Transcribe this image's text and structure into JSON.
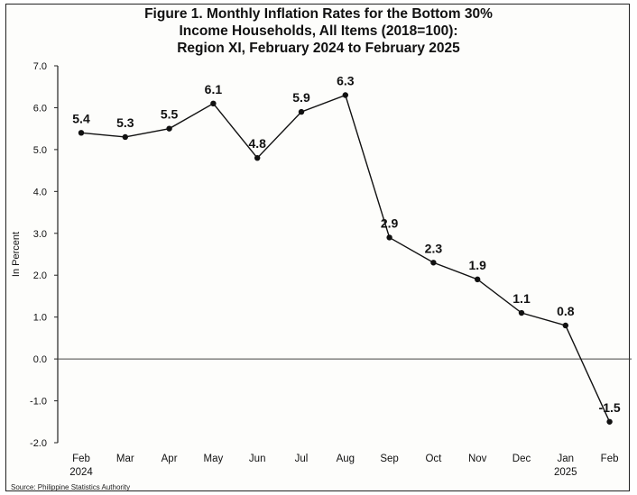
{
  "chart_data": {
    "type": "line",
    "title_lines": [
      "Figure 1. Monthly Inflation Rates for the Bottom 30%",
      "Income Households, All Items (2018=100):",
      "Region XI, February 2024 to February 2025"
    ],
    "ylabel": "In Percent",
    "ylim": [
      -2.0,
      7.0
    ],
    "yticks": [
      "7.0",
      "6.0",
      "5.0",
      "4.0",
      "3.0",
      "2.0",
      "1.0",
      "0.0",
      "-1.0",
      "-2.0"
    ],
    "ytick_values": [
      7,
      6,
      5,
      4,
      3,
      2,
      1,
      0,
      -1,
      -2
    ],
    "categories": [
      "Feb",
      "Mar",
      "Apr",
      "May",
      "Jun",
      "Jul",
      "Aug",
      "Sep",
      "Oct",
      "Nov",
      "Dec",
      "Jan",
      "Feb"
    ],
    "year_labels": [
      "2024",
      "",
      "",
      "",
      "",
      "",
      "",
      "",
      "",
      "",
      "",
      "2025",
      ""
    ],
    "values": [
      5.4,
      5.3,
      5.5,
      6.1,
      4.8,
      5.9,
      6.3,
      2.9,
      2.3,
      1.9,
      1.1,
      0.8,
      -1.5
    ],
    "data_labels": [
      "5.4",
      "5.3",
      "5.5",
      "6.1",
      "4.8",
      "5.9",
      "6.3",
      "2.9",
      "2.3",
      "1.9",
      "1.1",
      "0.8",
      "-1.5"
    ],
    "grid": false,
    "legend": "none",
    "line_color": "#111111",
    "source": "Source: Philippine Statistics Authority"
  }
}
